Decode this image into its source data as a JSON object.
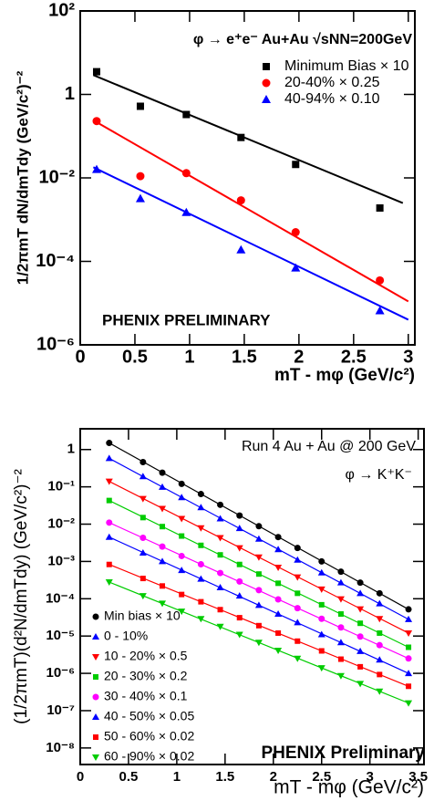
{
  "chart_data": [
    {
      "type": "scatter",
      "yscale": "log",
      "xlabel": "mT - mφ (GeV/c²)",
      "ylabel": "1/2πmT dN/dmTdy (GeV/c²)⁻²",
      "annotations": [
        {
          "text": "φ → e⁺e⁻ Au+Au √sNN=200GeV",
          "color": "#000000"
        },
        {
          "text": "PHENIX PRELIMINARY",
          "color": "#ff0000"
        }
      ],
      "xlim": [
        0,
        3.06
      ],
      "ylim": [
        1e-06,
        100
      ],
      "xticks": [
        0,
        0.5,
        1,
        1.5,
        2,
        2.5,
        3
      ],
      "yticks": [
        {
          "value": 100,
          "label": "10²"
        },
        1,
        {
          "value": 0.01,
          "label": "10⁻²"
        },
        {
          "value": 0.0001,
          "label": "10⁻⁴"
        },
        {
          "value": 1e-06,
          "label": "10⁻⁶"
        }
      ],
      "x": [
        0.15,
        0.55,
        0.97,
        1.47,
        1.97,
        2.74
      ],
      "series": [
        {
          "name": "Minimum Bias × 10",
          "color": "#000000",
          "marker": "square",
          "values": [
            3.5,
            0.52,
            0.33,
            0.093,
            0.021,
            0.0019
          ],
          "fit": {
            "x": [
              0.12,
              2.95
            ],
            "values": [
              2.9,
              0.0025
            ]
          }
        },
        {
          "name": "20-40% × 0.25",
          "color": "#ff0000",
          "marker": "circle",
          "values": [
            0.23,
            0.011,
            0.013,
            0.0029,
            0.0005,
            3.5e-05
          ],
          "fit": {
            "x": [
              0.12,
              3.0
            ],
            "values": [
              0.24,
              1.1e-05
            ]
          }
        },
        {
          "name": "40-94% × 0.10",
          "color": "#0000ff",
          "marker": "triangle-up",
          "values": [
            0.016,
            0.0032,
            0.0015,
            0.00019,
            7e-05,
            6.6e-06
          ],
          "fit": {
            "x": [
              0.12,
              3.0
            ],
            "values": [
              0.018,
              4e-06
            ]
          }
        }
      ]
    },
    {
      "type": "scatter",
      "yscale": "log",
      "xlabel": "mT - mφ (GeV/c²)",
      "ylabel": "(1/2πmT)(d²N/dmTdy) (GeV/c²)⁻²",
      "annotations": [
        {
          "text": "Run 4 Au + Au @ 200 GeV",
          "color": "#000000"
        },
        {
          "text": "φ → K⁺K⁻",
          "color": "#000000"
        },
        {
          "text": "PHENIX Preliminary",
          "color": "#ff0000"
        }
      ],
      "xlim": [
        0,
        3.56
      ],
      "ylim": [
        3.6e-09,
        3.6
      ],
      "xticks": [
        0,
        0.5,
        1,
        1.5,
        2,
        2.5,
        3,
        3.5
      ],
      "yticks": [
        1,
        {
          "value": 0.1,
          "label": "10⁻¹"
        },
        {
          "value": 0.01,
          "label": "10⁻²"
        },
        {
          "value": 0.001,
          "label": "10⁻³"
        },
        {
          "value": 0.0001,
          "label": "10⁻⁴"
        },
        {
          "value": 1e-05,
          "label": "10⁻⁵"
        },
        {
          "value": 1e-06,
          "label": "10⁻⁶"
        },
        {
          "value": 1e-07,
          "label": "10⁻⁷"
        },
        {
          "value": 1e-08,
          "label": "10⁻⁸"
        }
      ],
      "x": [
        0.3,
        0.65,
        0.85,
        1.05,
        1.25,
        1.45,
        1.65,
        1.85,
        2.05,
        2.25,
        2.5,
        2.7,
        2.9,
        3.1,
        3.4
      ],
      "series": [
        {
          "name": "Min bias × 10",
          "color": "#000000",
          "marker": "circle",
          "values": [
            1.5,
            0.46,
            0.24,
            0.12,
            0.064,
            0.033,
            0.017,
            0.0088,
            0.0045,
            0.0023,
            0.001,
            0.00053,
            0.00027,
            0.00014,
            5.2e-05
          ]
        },
        {
          "name": "0 - 10%",
          "color": "#0000ff",
          "marker": "triangle-up",
          "values": [
            0.58,
            0.19,
            0.099,
            0.052,
            0.028,
            0.014,
            0.0077,
            0.004,
            0.0021,
            0.0011,
            0.0005,
            0.00027,
            0.00014,
            7.4e-05,
            2.8e-05
          ]
        },
        {
          "name": "10 - 20% × 0.5",
          "color": "#ff0000",
          "marker": "triangle-down",
          "values": [
            0.14,
            0.048,
            0.026,
            0.014,
            0.0079,
            0.0043,
            0.0023,
            0.0013,
            0.00069,
            0.00038,
            0.00018,
            9.8e-05,
            5.3e-05,
            2.9e-05,
            1.2e-05
          ]
        },
        {
          "name": "20 - 30% × 0.2",
          "color": "#00cc00",
          "marker": "square",
          "values": [
            0.043,
            0.015,
            0.0086,
            0.0048,
            0.0027,
            0.0015,
            0.00083,
            0.00046,
            0.00026,
            0.00014,
            6.9e-05,
            3.9e-05,
            2.2e-05,
            1.2e-05,
            5e-06
          ]
        },
        {
          "name": "30 - 40% × 0.1",
          "color": "#ff00ff",
          "marker": "circle",
          "values": [
            0.011,
            0.0043,
            0.0025,
            0.0014,
            0.00084,
            0.00049,
            0.00029,
            0.00017,
            9.6e-05,
            5.6e-05,
            2.9e-05,
            1.7e-05,
            9.7e-06,
            5.7e-06,
            2.5e-06
          ]
        },
        {
          "name": "40 - 50% × 0.05",
          "color": "#0000ff",
          "marker": "triangle-up",
          "values": [
            0.0045,
            0.0017,
            0.001,
            0.00058,
            0.00034,
            0.0002,
            0.00012,
            6.7e-05,
            3.9e-05,
            2.3e-05,
            1.1e-05,
            6.7e-06,
            3.9e-06,
            2.3e-06,
            1e-06
          ]
        },
        {
          "name": "50 - 60% × 0.02",
          "color": "#ff0000",
          "marker": "square",
          "values": [
            0.00083,
            0.00035,
            0.00022,
            0.00013,
            8.3e-05,
            5.1e-05,
            3.1e-05,
            1.9e-05,
            1.2e-05,
            7.3e-06,
            4e-06,
            2.4e-06,
            1.5e-06,
            9.3e-07,
            4.5e-07
          ]
        },
        {
          "name": "60 - 90% × 0.02",
          "color": "#00cc00",
          "marker": "triangle-down",
          "values": [
            0.00028,
            0.00012,
            7.5e-05,
            4.6e-05,
            2.9e-05,
            1.8e-05,
            1.1e-05,
            6.7e-06,
            4.1e-06,
            2.5e-06,
            1.4e-06,
            8.6e-07,
            5.3e-07,
            3.3e-07,
            1.6e-07
          ]
        }
      ]
    }
  ]
}
